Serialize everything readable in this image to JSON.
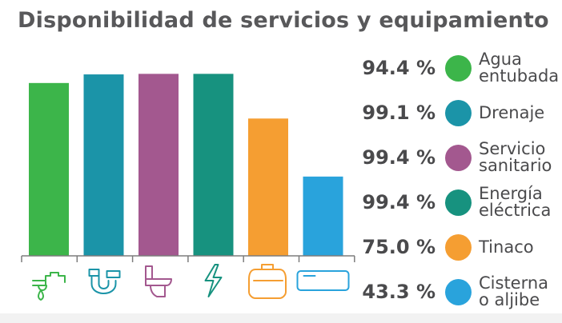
{
  "title": "Disponibilidad de servicios y equipamiento",
  "chart_data": {
    "type": "bar",
    "categories": [
      "Agua entubada",
      "Drenaje",
      "Servicio sanitario",
      "Energía eléctrica",
      "Tinaco",
      "Cisterna o aljibe"
    ],
    "values": [
      94.4,
      99.1,
      99.4,
      99.4,
      75.0,
      43.3
    ],
    "value_labels": [
      "94.4 %",
      "99.1 %",
      "99.4 %",
      "99.4 %",
      "75.0 %",
      "43.3 %"
    ],
    "label_lines": [
      [
        "Agua",
        "entubada"
      ],
      [
        "Drenaje"
      ],
      [
        "Servicio",
        "sanitario"
      ],
      [
        "Energía",
        "eléctrica"
      ],
      [
        "Tinaco"
      ],
      [
        "Cisterna",
        "o aljibe"
      ]
    ],
    "colors": [
      "#3cb54a",
      "#1b94a8",
      "#a3588f",
      "#17927f",
      "#f59e32",
      "#29a3dc"
    ],
    "icons": [
      "faucet-icon",
      "pipe-icon",
      "toilet-icon",
      "lightning-icon",
      "water-tank-icon",
      "cistern-icon"
    ],
    "ylim": [
      0,
      100
    ],
    "legend_position": "right",
    "grid": false,
    "xlabel": "",
    "ylabel": ""
  }
}
